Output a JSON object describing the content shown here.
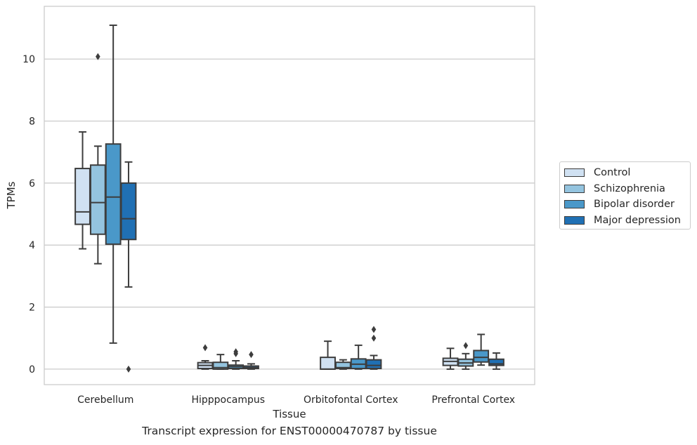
{
  "chart_data": {
    "type": "box",
    "xlabel": "Tissue",
    "ylabel": "TPMs",
    "caption": "Transcript expression for ENST00000470787 by tissue",
    "ylim": [
      -0.5,
      11.7
    ],
    "yticks": [
      0,
      2,
      4,
      6,
      8,
      10
    ],
    "grid": "horizontal",
    "legend_position": "right",
    "categories": [
      "Cerebellum",
      "Hipppocampus",
      "Orbitofontal Cortex",
      "Prefrontal Cortex"
    ],
    "series": [
      {
        "name": "Control",
        "color": "#d0e1f2",
        "boxes": [
          {
            "whislo": 3.88,
            "q1": 4.67,
            "med": 5.07,
            "q3": 6.47,
            "whishi": 7.65,
            "fliers": []
          },
          {
            "whislo": 0.0,
            "q1": 0.02,
            "med": 0.12,
            "q3": 0.21,
            "whishi": 0.27,
            "fliers": [
              0.69
            ]
          },
          {
            "whislo": 0.0,
            "q1": 0.0,
            "med": 0.0,
            "q3": 0.38,
            "whishi": 0.9,
            "fliers": []
          },
          {
            "whislo": 0.0,
            "q1": 0.12,
            "med": 0.25,
            "q3": 0.35,
            "whishi": 0.67,
            "fliers": []
          }
        ]
      },
      {
        "name": "Schizophrenia",
        "color": "#94c4df",
        "boxes": [
          {
            "whislo": 3.4,
            "q1": 4.35,
            "med": 5.37,
            "q3": 6.58,
            "whishi": 7.19,
            "fliers": [
              10.08
            ]
          },
          {
            "whislo": 0.0,
            "q1": 0.0,
            "med": 0.05,
            "q3": 0.22,
            "whishi": 0.47,
            "fliers": []
          },
          {
            "whislo": 0.0,
            "q1": 0.02,
            "med": 0.05,
            "q3": 0.22,
            "whishi": 0.3,
            "fliers": []
          },
          {
            "whislo": 0.0,
            "q1": 0.1,
            "med": 0.2,
            "q3": 0.32,
            "whishi": 0.5,
            "fliers": [
              0.76
            ]
          }
        ]
      },
      {
        "name": "Bipolar disorder",
        "color": "#4a98c9",
        "boxes": [
          {
            "whislo": 0.84,
            "q1": 4.03,
            "med": 5.55,
            "q3": 7.26,
            "whishi": 11.09,
            "fliers": []
          },
          {
            "whislo": 0.0,
            "q1": 0.02,
            "med": 0.08,
            "q3": 0.13,
            "whishi": 0.27,
            "fliers": [
              0.5,
              0.56
            ]
          },
          {
            "whislo": 0.0,
            "q1": 0.02,
            "med": 0.16,
            "q3": 0.33,
            "whishi": 0.77,
            "fliers": []
          },
          {
            "whislo": 0.13,
            "q1": 0.23,
            "med": 0.38,
            "q3": 0.6,
            "whishi": 1.12,
            "fliers": []
          }
        ]
      },
      {
        "name": "Major depression",
        "color": "#2070b4",
        "boxes": [
          {
            "whislo": 2.65,
            "q1": 4.18,
            "med": 4.85,
            "q3": 6.0,
            "whishi": 6.68,
            "fliers": [
              0.0
            ]
          },
          {
            "whislo": 0.0,
            "q1": 0.02,
            "med": 0.05,
            "q3": 0.1,
            "whishi": 0.17,
            "fliers": [
              0.47
            ]
          },
          {
            "whislo": 0.0,
            "q1": 0.02,
            "med": 0.12,
            "q3": 0.3,
            "whishi": 0.44,
            "fliers": [
              1.0,
              1.28
            ]
          },
          {
            "whislo": 0.0,
            "q1": 0.12,
            "med": 0.17,
            "q3": 0.32,
            "whishi": 0.52,
            "fliers": []
          }
        ]
      }
    ]
  }
}
